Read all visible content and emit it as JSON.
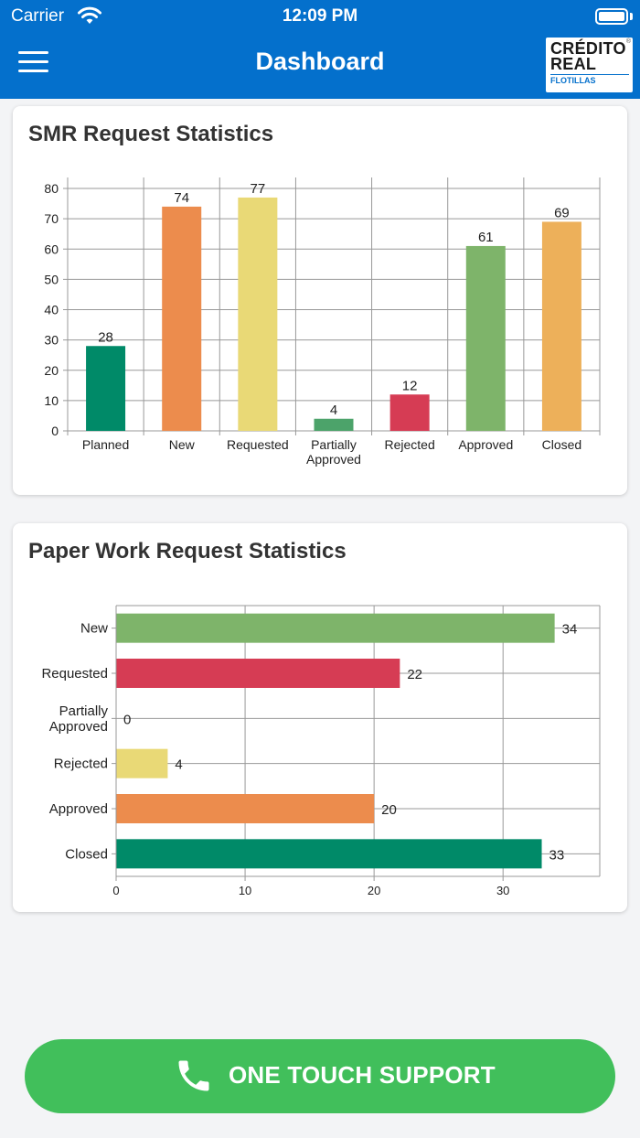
{
  "status_bar": {
    "carrier": "Carrier",
    "time": "12:09 PM"
  },
  "header": {
    "title": "Dashboard",
    "logo_line1": "CRÉDITO",
    "logo_line2": "REAL",
    "logo_sub": "FLOTILLAS",
    "logo_mark": "®"
  },
  "colors": {
    "header": "#0470cc",
    "support": "#41bf5b",
    "teal": "#008a68",
    "orange": "#ec8c4d",
    "yellow": "#e9d976",
    "green_dark": "#4ca36a",
    "red": "#d63c54",
    "green": "#7eb46a",
    "amber": "#edb05a"
  },
  "smr_card": {
    "title": "SMR Request Statistics"
  },
  "paper_card": {
    "title": "Paper Work Request Statistics"
  },
  "chart_data": [
    {
      "type": "bar",
      "title": "SMR Request Statistics",
      "orientation": "vertical",
      "categories": [
        "Planned",
        "New",
        "Requested",
        "Partially Approved",
        "Rejected",
        "Approved",
        "Closed"
      ],
      "category_lines": [
        [
          "Planned"
        ],
        [
          "New"
        ],
        [
          "Requested"
        ],
        [
          "Partially",
          "Approved"
        ],
        [
          "Rejected"
        ],
        [
          "Approved"
        ],
        [
          "Closed"
        ]
      ],
      "values": [
        28,
        74,
        77,
        4,
        12,
        61,
        69
      ],
      "colors": [
        "#008a68",
        "#ec8c4d",
        "#e9d976",
        "#4ca36a",
        "#d63c54",
        "#7eb46a",
        "#edb05a"
      ],
      "ylim": [
        0,
        80
      ],
      "yticks": [
        0,
        10,
        20,
        30,
        40,
        50,
        60,
        70,
        80
      ],
      "grid": true,
      "legend": "none"
    },
    {
      "type": "bar",
      "title": "Paper Work Request Statistics",
      "orientation": "horizontal",
      "categories": [
        "New",
        "Requested",
        "Partially Approved",
        "Rejected",
        "Approved",
        "Closed"
      ],
      "category_lines": [
        [
          "New"
        ],
        [
          "Requested"
        ],
        [
          "Partially",
          "Approved"
        ],
        [
          "Rejected"
        ],
        [
          "Approved"
        ],
        [
          "Closed"
        ]
      ],
      "values": [
        34,
        22,
        0,
        4,
        20,
        33
      ],
      "colors": [
        "#7eb46a",
        "#d63c54",
        "#4ca36a",
        "#e9d976",
        "#ec8c4d",
        "#008a68"
      ],
      "xlim": [
        0,
        37.5
      ],
      "xticks": [
        0,
        10,
        20,
        30
      ],
      "grid": true,
      "legend": "none"
    }
  ],
  "support": {
    "label": "ONE TOUCH SUPPORT"
  }
}
